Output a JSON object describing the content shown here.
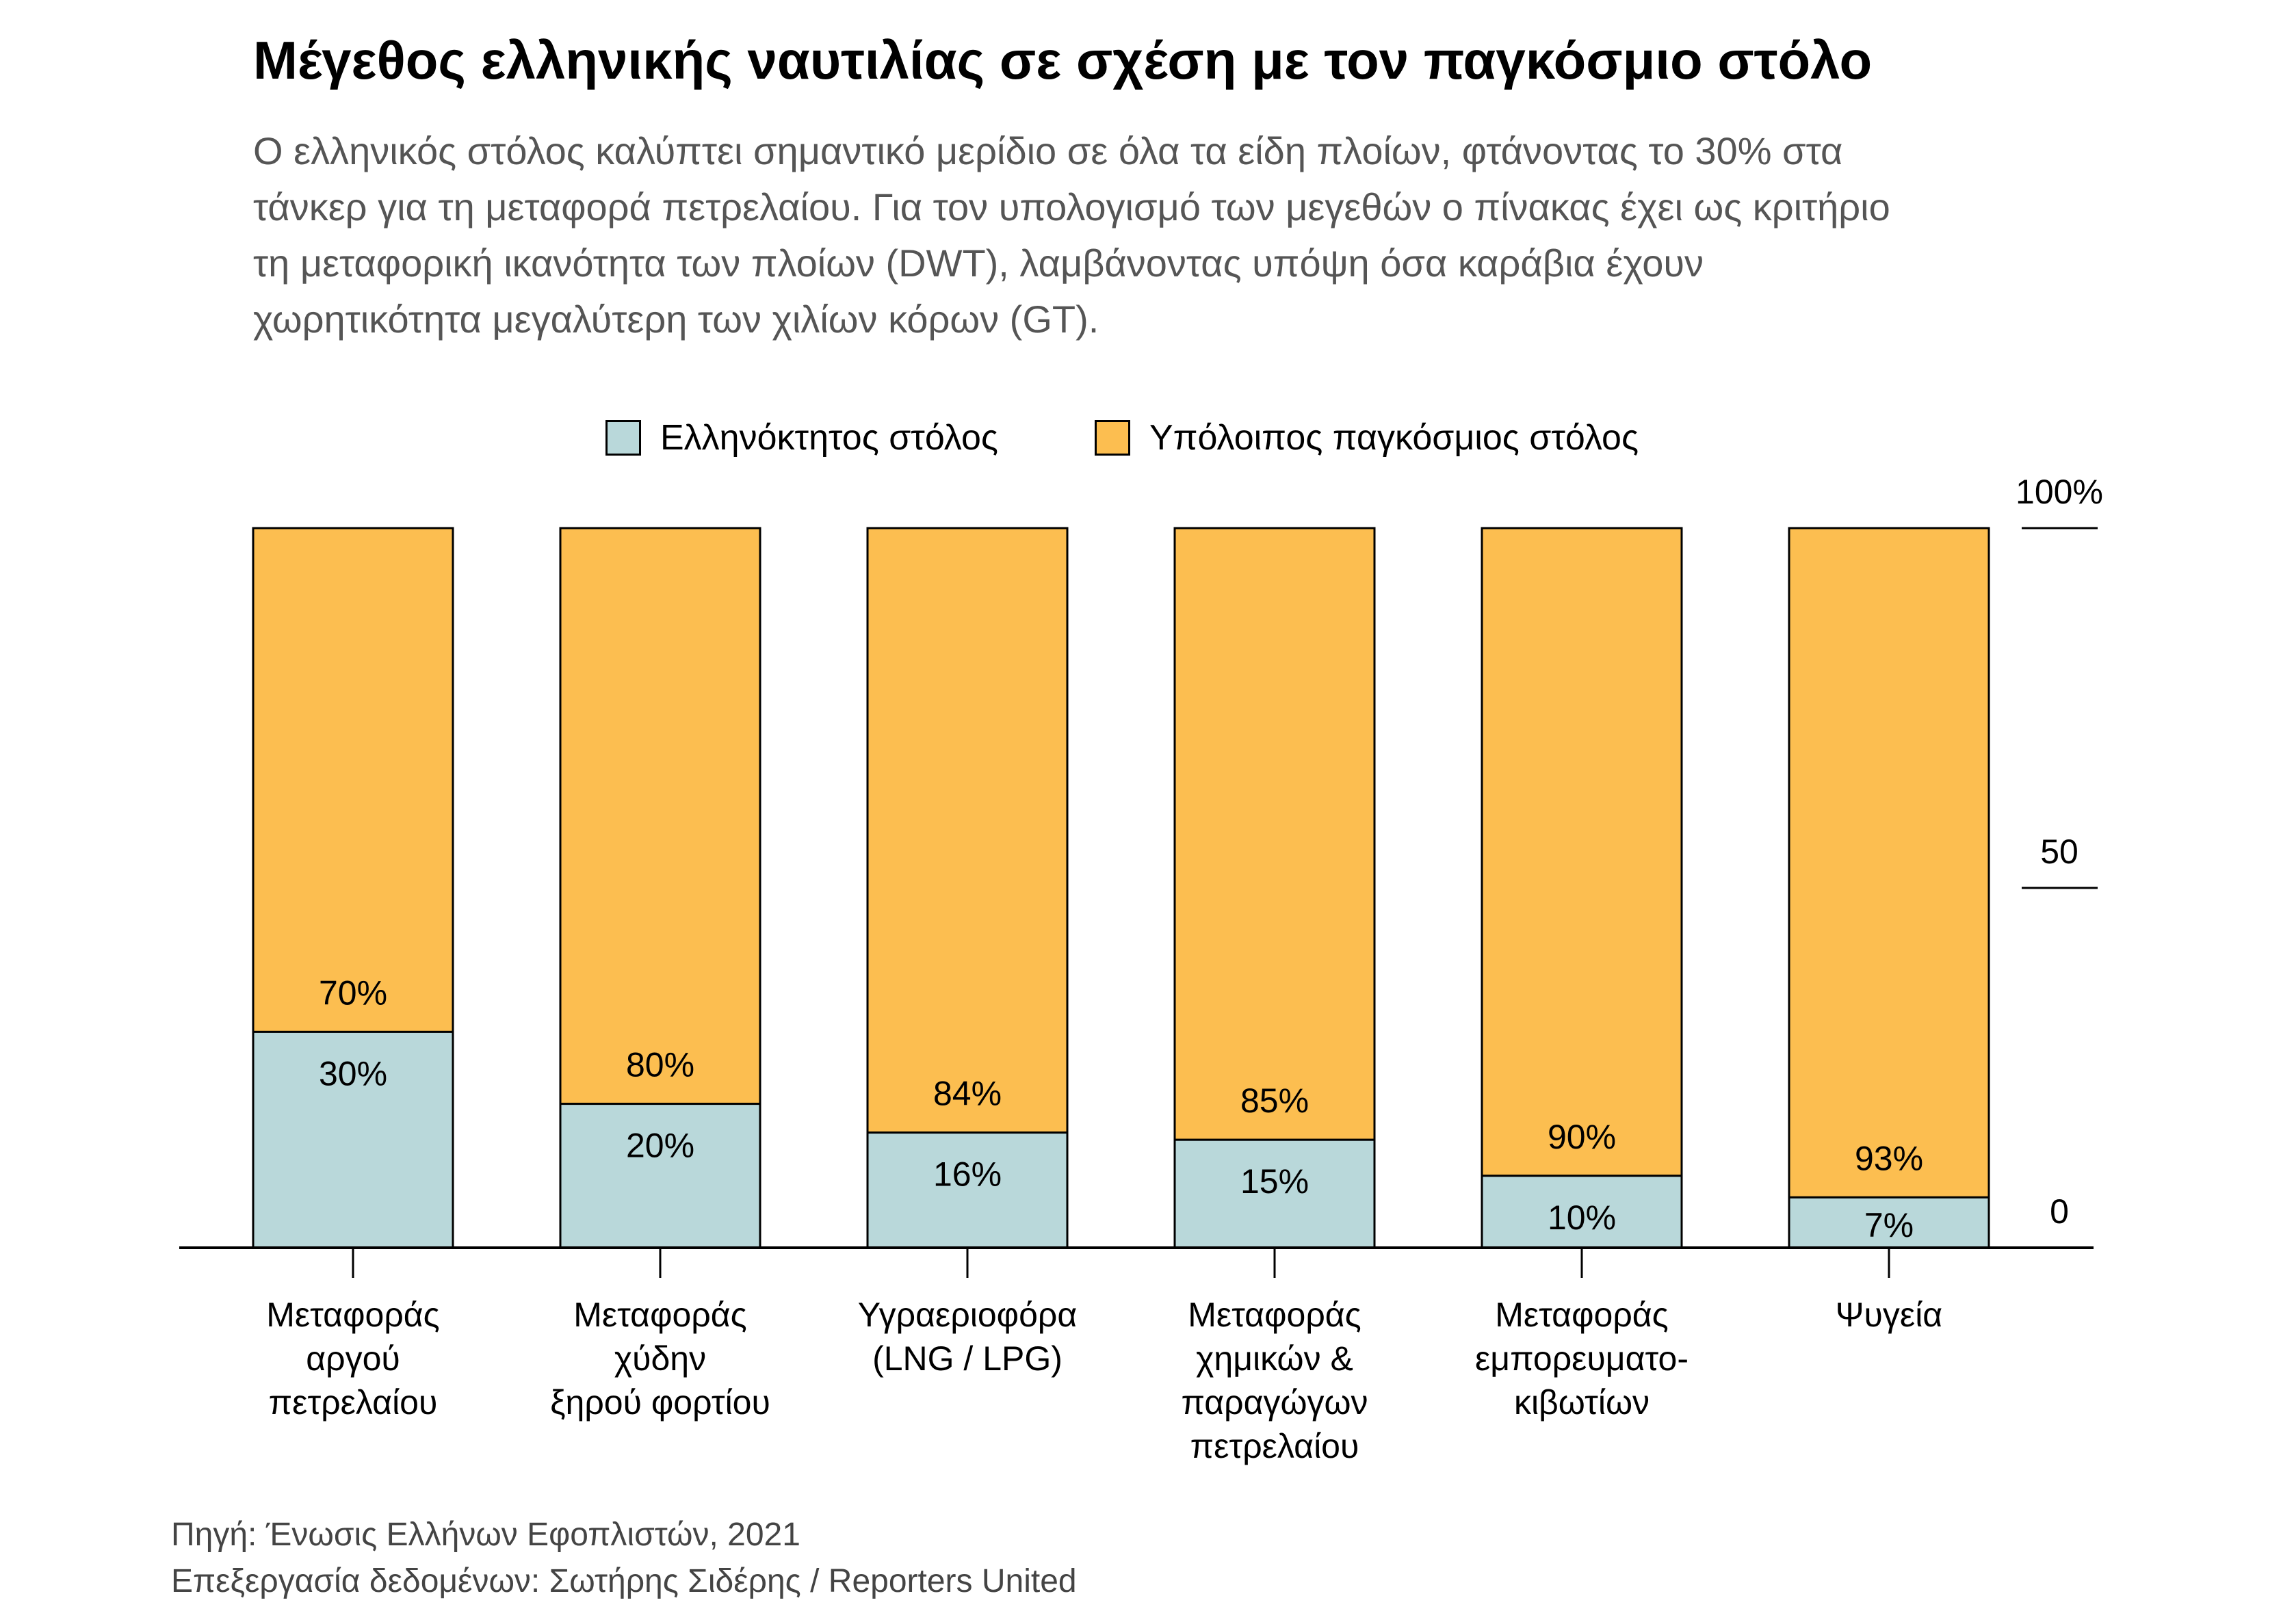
{
  "title": "Μέγεθος ελληνικής ναυτιλίας σε σχέση με τον παγκόσμιο στόλο",
  "subtitle_lines": [
    "Ο ελληνικός στόλος καλύπτει σημαντικό μερίδιο σε όλα τα είδη πλοίων, φτάνοντας το 30% στα",
    "τάνκερ για τη μεταφορά πετρελαίου. Για τον υπολογισμό των μεγεθών ο πίνακας έχει ως κριτήριο",
    "τη μεταφορική ικανότητα των πλοίων (DWT), λαμβάνοντας υπόψη όσα καράβια έχουν",
    "χωρητικότητα μεγαλύτερη των χιλίων κόρων (GT)."
  ],
  "legend": [
    {
      "label": "Ελληνόκτητος στόλος",
      "color": "#b9d8da"
    },
    {
      "label": "Υπόλοιπος παγκόσμιος στόλος",
      "color": "#fcbe50"
    }
  ],
  "chart_data": {
    "type": "bar",
    "stacked": true,
    "categories": [
      [
        "Μεταφοράς",
        "αργού",
        "πετρελαίου"
      ],
      [
        "Μεταφοράς",
        "χύδην",
        "ξηρού φορτίου"
      ],
      [
        "Υγραεριοφόρα",
        "(LNG / LPG)"
      ],
      [
        "Μεταφοράς",
        "χημικών &",
        "παραγώγων",
        "πετρελαίου"
      ],
      [
        "Μεταφοράς",
        "εμπορευματο-",
        "κιβωτίων"
      ],
      [
        "Ψυγεία"
      ]
    ],
    "series": [
      {
        "name": "Ελληνόκτητος στόλος",
        "values": [
          30,
          20,
          16,
          15,
          10,
          7
        ],
        "labels": [
          "30%",
          "20%",
          "16%",
          "15%",
          "10%",
          "7%"
        ]
      },
      {
        "name": "Υπόλοιπος παγκόσμιος στόλος",
        "values": [
          70,
          80,
          84,
          85,
          90,
          93
        ],
        "labels": [
          "70%",
          "80%",
          "84%",
          "85%",
          "90%",
          "93%"
        ]
      }
    ],
    "y_ticks": [
      {
        "value": 0,
        "label": "0"
      },
      {
        "value": 50,
        "label": "50"
      },
      {
        "value": 100,
        "label": "100%"
      }
    ],
    "ylim": [
      0,
      100
    ],
    "y_axis_side": "right",
    "legend_position": "top"
  },
  "source_lines": [
    "Πηγή: Ένωσις Ελλήνων Εφοπλιστών, 2021",
    "Επεξεργασία δεδομένων: Σωτήρης Σιδέρης / Reporters United"
  ]
}
